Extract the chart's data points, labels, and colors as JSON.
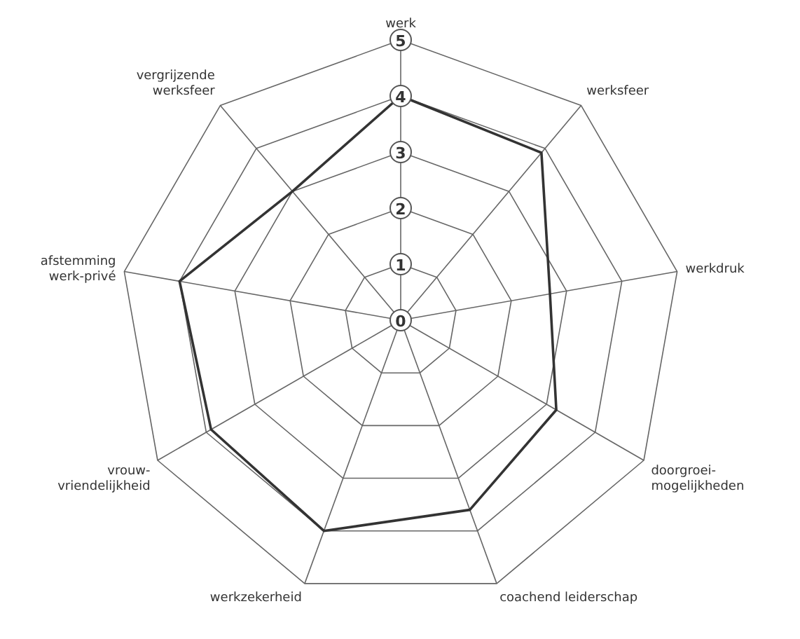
{
  "chart_data": {
    "type": "radar",
    "categories": [
      "werk",
      "werksfeer",
      "werkdruk",
      "doorgroei-\nmogelijkheden",
      "coachend leiderschap",
      "werkzekerheid",
      "vrouw-\nvriendelijkheid",
      "afstemming\nwerk-privé",
      "vergrijzende\nwerksfeer"
    ],
    "series": [
      {
        "color": "#333333",
        "values": [
          4,
          3.9,
          2.7,
          3.2,
          3.6,
          4.0,
          3.9,
          4.0,
          3.0
        ]
      }
    ],
    "ylim": [
      0,
      5
    ],
    "yticks": [
      0,
      1,
      2,
      3,
      4,
      5
    ],
    "grid": true
  }
}
